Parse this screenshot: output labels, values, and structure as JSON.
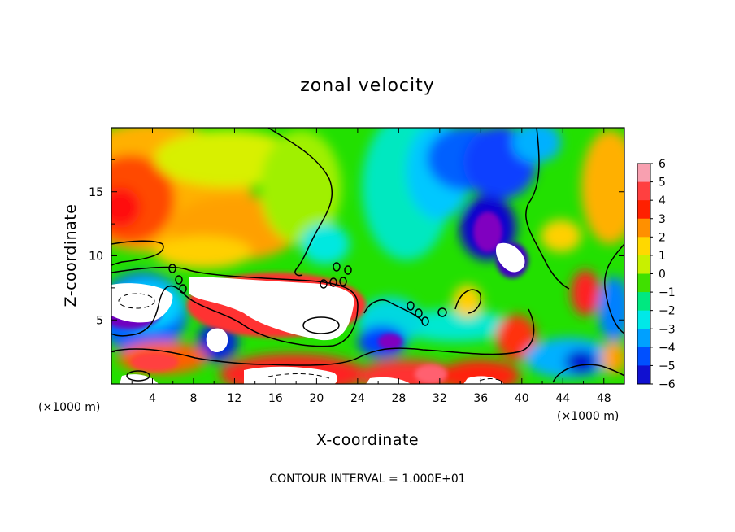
{
  "chart_data": {
    "type": "heatmap",
    "title": "zonal velocity",
    "xlabel": "X-coordinate",
    "ylabel": "Z-coordinate",
    "x_unit": "(×1000 m)",
    "xlim": [
      0,
      50
    ],
    "ylim": [
      0,
      20
    ],
    "xticks": [
      "4",
      "8",
      "12",
      "16",
      "20",
      "24",
      "28",
      "32",
      "36",
      "40",
      "44",
      "48"
    ],
    "yticks": [
      "5",
      "10",
      "15"
    ],
    "footer": "CONTOUR INTERVAL = 1.000E+01",
    "colorbar": {
      "levels": [
        "6",
        "5",
        "4",
        "3",
        "2",
        "1",
        "0",
        "−1",
        "−2",
        "−3",
        "−4",
        "−5",
        "−6"
      ],
      "range": [
        -6,
        6
      ]
    },
    "grid": false,
    "legend": "colorbar right"
  }
}
